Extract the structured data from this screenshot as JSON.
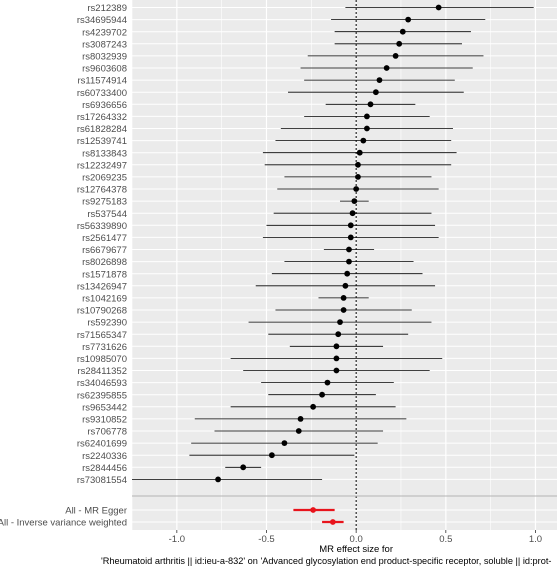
{
  "chart_data": {
    "type": "forest",
    "xlabel_line1": "MR effect size for",
    "xlabel_line2": "'Rheumatoid arthritis || id:ieu-a-832' on 'Advanced glycosylation end product-specific receptor, soluble || id:prot-",
    "xlim": [
      -1.25,
      1.12
    ],
    "xticks": [
      -1.0,
      -0.5,
      0.0,
      0.5,
      1.0
    ],
    "xtick_labels": [
      "-1.0",
      "-0.5",
      "0.0",
      "0.5",
      "1.0"
    ],
    "grid": true,
    "reference_line": 0,
    "colors": {
      "panel": "#ebebeb",
      "grid": "#ffffff",
      "snp_point": "#000000",
      "snp_ci": "#000000",
      "summary": "#e8141c",
      "separator": "#b3b3b3"
    },
    "snps": [
      {
        "label": "rs212389",
        "b": 0.46,
        "lo": -0.06,
        "hi": 0.99
      },
      {
        "label": "rs34695944",
        "b": 0.29,
        "lo": -0.14,
        "hi": 0.72
      },
      {
        "label": "rs4239702",
        "b": 0.26,
        "lo": -0.12,
        "hi": 0.64
      },
      {
        "label": "rs3087243",
        "b": 0.24,
        "lo": -0.12,
        "hi": 0.59
      },
      {
        "label": "rs8032939",
        "b": 0.22,
        "lo": -0.27,
        "hi": 0.71
      },
      {
        "label": "rs9603608",
        "b": 0.17,
        "lo": -0.31,
        "hi": 0.65
      },
      {
        "label": "rs11574914",
        "b": 0.13,
        "lo": -0.29,
        "hi": 0.55
      },
      {
        "label": "rs60733400",
        "b": 0.11,
        "lo": -0.38,
        "hi": 0.6
      },
      {
        "label": "rs6936656",
        "b": 0.08,
        "lo": -0.17,
        "hi": 0.33
      },
      {
        "label": "rs17264332",
        "b": 0.06,
        "lo": -0.29,
        "hi": 0.41
      },
      {
        "label": "rs61828284",
        "b": 0.06,
        "lo": -0.42,
        "hi": 0.54
      },
      {
        "label": "rs12539741",
        "b": 0.04,
        "lo": -0.45,
        "hi": 0.53
      },
      {
        "label": "rs8133843",
        "b": 0.02,
        "lo": -0.52,
        "hi": 0.56
      },
      {
        "label": "rs12232497",
        "b": 0.01,
        "lo": -0.51,
        "hi": 0.53
      },
      {
        "label": "rs2069235",
        "b": 0.01,
        "lo": -0.4,
        "hi": 0.42
      },
      {
        "label": "rs12764378",
        "b": 0.0,
        "lo": -0.44,
        "hi": 0.46
      },
      {
        "label": "rs9275183",
        "b": -0.01,
        "lo": -0.09,
        "hi": 0.07
      },
      {
        "label": "rs537544",
        "b": -0.02,
        "lo": -0.46,
        "hi": 0.42
      },
      {
        "label": "rs56339890",
        "b": -0.03,
        "lo": -0.5,
        "hi": 0.44
      },
      {
        "label": "rs2561477",
        "b": -0.03,
        "lo": -0.52,
        "hi": 0.46
      },
      {
        "label": "rs6679677",
        "b": -0.04,
        "lo": -0.18,
        "hi": 0.1
      },
      {
        "label": "rs8026898",
        "b": -0.04,
        "lo": -0.4,
        "hi": 0.32
      },
      {
        "label": "rs1571878",
        "b": -0.05,
        "lo": -0.47,
        "hi": 0.37
      },
      {
        "label": "rs13426947",
        "b": -0.06,
        "lo": -0.56,
        "hi": 0.44
      },
      {
        "label": "rs1042169",
        "b": -0.07,
        "lo": -0.21,
        "hi": 0.07
      },
      {
        "label": "rs10790268",
        "b": -0.07,
        "lo": -0.45,
        "hi": 0.31
      },
      {
        "label": "rs592390",
        "b": -0.09,
        "lo": -0.6,
        "hi": 0.42
      },
      {
        "label": "rs71565347",
        "b": -0.1,
        "lo": -0.49,
        "hi": 0.29
      },
      {
        "label": "rs7731626",
        "b": -0.11,
        "lo": -0.37,
        "hi": 0.15
      },
      {
        "label": "rs10985070",
        "b": -0.11,
        "lo": -0.7,
        "hi": 0.48
      },
      {
        "label": "rs28411352",
        "b": -0.11,
        "lo": -0.63,
        "hi": 0.41
      },
      {
        "label": "rs34046593",
        "b": -0.16,
        "lo": -0.53,
        "hi": 0.21
      },
      {
        "label": "rs62395855",
        "b": -0.19,
        "lo": -0.49,
        "hi": 0.11
      },
      {
        "label": "rs9653442",
        "b": -0.24,
        "lo": -0.7,
        "hi": 0.22
      },
      {
        "label": "rs9310852",
        "b": -0.31,
        "lo": -0.9,
        "hi": 0.28
      },
      {
        "label": "rs706778",
        "b": -0.32,
        "lo": -0.79,
        "hi": 0.15
      },
      {
        "label": "rs62401699",
        "b": -0.4,
        "lo": -0.92,
        "hi": 0.12
      },
      {
        "label": "rs2240336",
        "b": -0.47,
        "lo": -0.93,
        "hi": -0.01
      },
      {
        "label": "rs2844456",
        "b": -0.63,
        "lo": -0.73,
        "hi": -0.53
      },
      {
        "label": "rs73081554",
        "b": -0.77,
        "lo": -1.35,
        "hi": -0.19
      }
    ],
    "summary": [
      {
        "label": "All - MR Egger",
        "b": -0.24,
        "lo": -0.35,
        "hi": -0.12
      },
      {
        "label": "All - Inverse variance weighted",
        "b": -0.13,
        "lo": -0.19,
        "hi": -0.07
      }
    ]
  }
}
